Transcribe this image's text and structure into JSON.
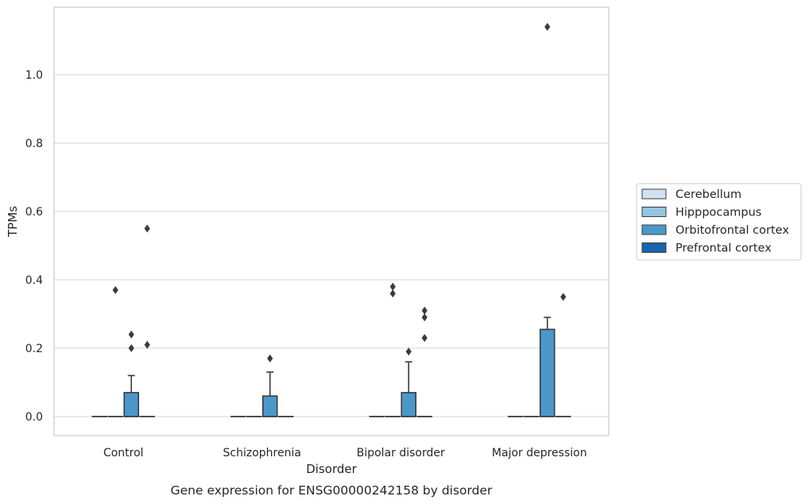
{
  "chart_data": {
    "type": "box",
    "caption": "Gene expression for ENSG00000242158 by disorder",
    "xlabel": "Disorder",
    "ylabel": "TPMs",
    "ylim": [
      -0.055,
      1.206
    ],
    "yticks": [
      0.0,
      0.2,
      0.4,
      0.6,
      0.8,
      1.0
    ],
    "ytick_labels": [
      "0.0",
      "0.2",
      "0.4",
      "0.6",
      "0.8",
      "1.0"
    ],
    "grid": true,
    "legend_position": "right, outside plot",
    "categories": [
      "Control",
      "Schizophrenia",
      "Bipolar disorder",
      "Major depression"
    ],
    "series": [
      {
        "name": "Cerebellum",
        "color": "#d0e1f2",
        "boxes": [
          {
            "q1": 0,
            "median": 0,
            "q3": 0,
            "whisker_low": 0,
            "whisker_high": 0,
            "outliers": []
          },
          {
            "q1": 0,
            "median": 0,
            "q3": 0,
            "whisker_low": 0,
            "whisker_high": 0,
            "outliers": []
          },
          {
            "q1": 0,
            "median": 0,
            "q3": 0,
            "whisker_low": 0,
            "whisker_high": 0,
            "outliers": []
          },
          {
            "q1": 0,
            "median": 0,
            "q3": 0,
            "whisker_low": 0,
            "whisker_high": 0,
            "outliers": []
          }
        ]
      },
      {
        "name": "Hipppocampus",
        "color": "#94c4df",
        "boxes": [
          {
            "q1": 0,
            "median": 0,
            "q3": 0,
            "whisker_low": 0,
            "whisker_high": 0,
            "outliers": [
              0.37
            ]
          },
          {
            "q1": 0,
            "median": 0,
            "q3": 0,
            "whisker_low": 0,
            "whisker_high": 0,
            "outliers": []
          },
          {
            "q1": 0,
            "median": 0,
            "q3": 0,
            "whisker_low": 0,
            "whisker_high": 0,
            "outliers": [
              0.38,
              0.36
            ]
          },
          {
            "q1": 0,
            "median": 0,
            "q3": 0,
            "whisker_low": 0,
            "whisker_high": 0,
            "outliers": []
          }
        ]
      },
      {
        "name": "Orbitofrontal cortex",
        "color": "#4a98c9",
        "boxes": [
          {
            "q1": 0,
            "median": 0,
            "q3": 0.07,
            "whisker_low": 0,
            "whisker_high": 0.12,
            "outliers": [
              0.24,
              0.2
            ]
          },
          {
            "q1": 0,
            "median": 0,
            "q3": 0.06,
            "whisker_low": 0,
            "whisker_high": 0.13,
            "outliers": [
              0.17
            ]
          },
          {
            "q1": 0,
            "median": 0,
            "q3": 0.07,
            "whisker_low": 0,
            "whisker_high": 0.16,
            "outliers": [
              0.19
            ]
          },
          {
            "q1": 0,
            "median": 0,
            "q3": 0.255,
            "whisker_low": 0,
            "whisker_high": 0.29,
            "outliers": [
              1.14
            ]
          }
        ]
      },
      {
        "name": "Prefrontal cortex",
        "color": "#1764ab",
        "boxes": [
          {
            "q1": 0,
            "median": 0,
            "q3": 0,
            "whisker_low": 0,
            "whisker_high": 0,
            "outliers": [
              0.55,
              0.21
            ]
          },
          {
            "q1": 0,
            "median": 0,
            "q3": 0,
            "whisker_low": 0,
            "whisker_high": 0,
            "outliers": []
          },
          {
            "q1": 0,
            "median": 0,
            "q3": 0,
            "whisker_low": 0,
            "whisker_high": 0,
            "outliers": [
              0.31,
              0.29,
              0.23
            ]
          },
          {
            "q1": 0,
            "median": 0,
            "q3": 0,
            "whisker_low": 0,
            "whisker_high": 0,
            "outliers": [
              0.35
            ]
          }
        ]
      }
    ]
  }
}
